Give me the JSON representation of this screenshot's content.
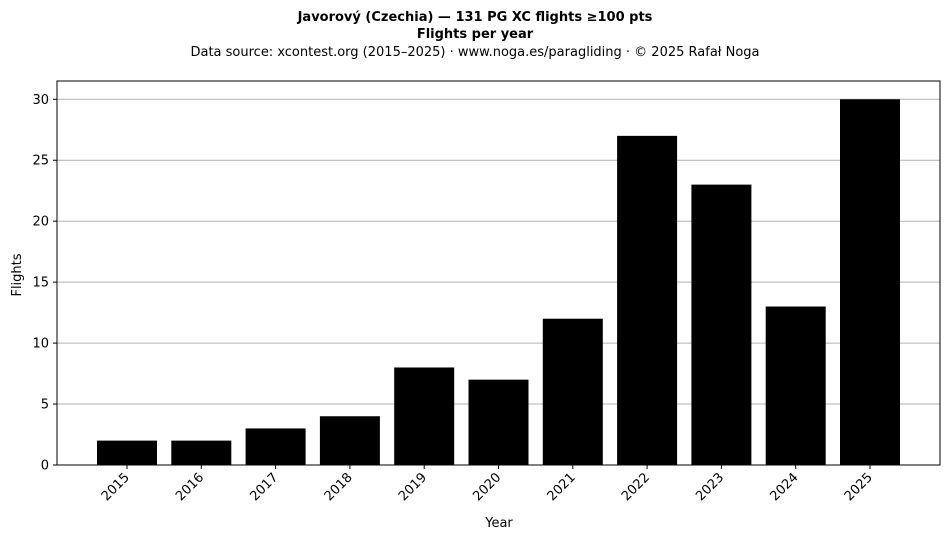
{
  "chart_data": {
    "type": "bar",
    "title": "Javorový (Czechia)  —  131 PG XC flights ≥100 pts",
    "subtitle": "Flights per year",
    "source_note": "Data source: xcontest.org (2015–2025)  ·  www.noga.es/paragliding  ·  © 2025 Rafał Noga",
    "xlabel": "Year",
    "ylabel": "Flights",
    "categories": [
      "2015",
      "2016",
      "2017",
      "2018",
      "2019",
      "2020",
      "2021",
      "2022",
      "2023",
      "2024",
      "2025"
    ],
    "values": [
      2,
      2,
      3,
      4,
      8,
      7,
      12,
      27,
      23,
      13,
      30
    ],
    "ylim": [
      0,
      31.5
    ],
    "yticks": [
      0,
      5,
      10,
      15,
      20,
      25,
      30
    ],
    "grid": "horizontal",
    "bar_color": "#000000",
    "grid_color": "#b0b0b0",
    "tick_label_rotation": "45"
  }
}
